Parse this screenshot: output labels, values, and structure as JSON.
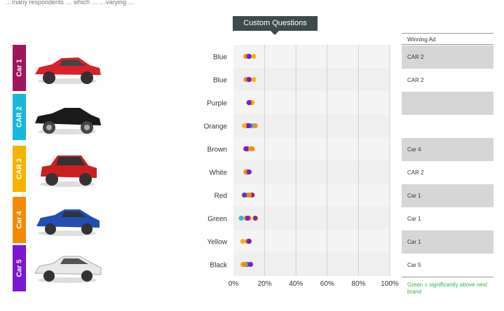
{
  "header": {
    "caption": "…many respondents … which … …varying …"
  },
  "cars": [
    {
      "label": "Car 1",
      "color": "#a0165c",
      "body": "#d9222a"
    },
    {
      "label": "CAR 2",
      "color": "#1ab7dd",
      "body": "#1a1a1a"
    },
    {
      "label": "CAR 3",
      "color": "#f4b400",
      "body": "#cc1e1e"
    },
    {
      "label": "Car 4",
      "color": "#f58a07",
      "body": "#1f4fb5"
    },
    {
      "label": "Car 5",
      "color": "#7b16d3",
      "body": "#e8e8e8"
    }
  ],
  "winning": {
    "header": "Winning Ad",
    "note": "Green = significantly above next brand",
    "rows": [
      {
        "value": "CAR 2",
        "shaded": true
      },
      {
        "value": "CAR 2",
        "shaded": false
      },
      {
        "value": "",
        "shaded": true
      },
      {
        "value": "",
        "shaded": false
      },
      {
        "value": "Car 4",
        "shaded": true
      },
      {
        "value": "CAR 2",
        "shaded": false
      },
      {
        "value": "Car 1",
        "shaded": true
      },
      {
        "value": "Car 1",
        "shaded": false
      },
      {
        "value": "Car 1",
        "shaded": true
      },
      {
        "value": "Car 5",
        "shaded": false
      }
    ]
  },
  "chart_data": {
    "type": "scatter",
    "title": "Custom Questions",
    "categories": [
      "Blue",
      "Blue",
      "Purple",
      "Orange",
      "Brown",
      "White",
      "Red",
      "Green",
      "Yellow",
      "Black"
    ],
    "xlim": [
      0,
      100
    ],
    "xticks": [
      "0%",
      "20%",
      "40%",
      "60%",
      "80%",
      "100%"
    ],
    "colors": {
      "Car 1": "#a0165c",
      "CAR 2": "#1ab7dd",
      "CAR 3": "#f4b400",
      "Car 4": "#f58a07",
      "Car 5": "#7b16d3"
    },
    "series": [
      {
        "name": "Car 1",
        "values": [
          10,
          10,
          11,
          9,
          9,
          9,
          12,
          14,
          10,
          9
        ]
      },
      {
        "name": "CAR 2",
        "values": [
          9,
          9,
          10,
          12,
          8,
          10,
          9,
          5,
          9,
          8
        ]
      },
      {
        "name": "CAR 3",
        "values": [
          13,
          13,
          12,
          7,
          11,
          8,
          10,
          8,
          6,
          6
        ]
      },
      {
        "name": "Car 4",
        "values": [
          8,
          8,
          10,
          14,
          12,
          8,
          10,
          10,
          9,
          7
        ]
      },
      {
        "name": "Car 5",
        "values": [
          10,
          10,
          10,
          10,
          8,
          10,
          7,
          9,
          10,
          11
        ]
      }
    ]
  }
}
